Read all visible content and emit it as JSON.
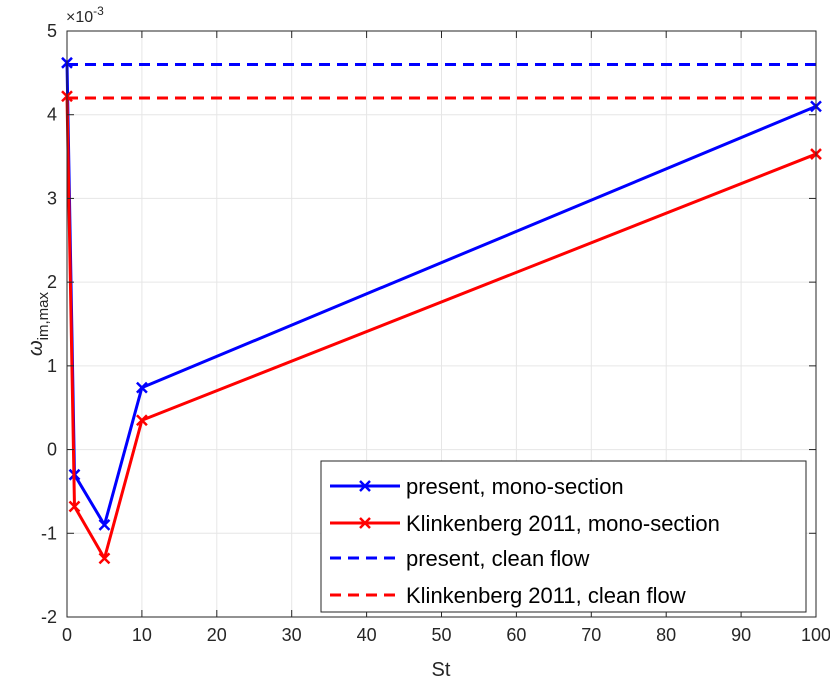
{
  "chart_data": {
    "type": "line",
    "xlabel": "St",
    "ylabel_main": "ω",
    "ylabel_sub": "im,max",
    "y_exponent_base": "×10",
    "y_exponent_power": "-3",
    "xlim": [
      0,
      100
    ],
    "ylim": [
      -2,
      5
    ],
    "xticks": [
      0,
      10,
      20,
      30,
      40,
      50,
      60,
      70,
      80,
      90,
      100
    ],
    "yticks": [
      -2,
      -1,
      0,
      1,
      2,
      3,
      4,
      5
    ],
    "grid": true,
    "legend_placement": "bottom-right",
    "series": [
      {
        "name": "present, mono-section",
        "style": "solid",
        "marker": "x",
        "color": "#0000ff",
        "x": [
          0,
          1,
          5,
          10,
          100
        ],
        "y": [
          4.62,
          -0.3,
          -0.9,
          0.74,
          4.1
        ]
      },
      {
        "name": "Klinkenberg 2011, mono-section",
        "style": "solid",
        "marker": "x",
        "color": "#ff0000",
        "x": [
          0,
          1,
          5,
          10,
          100
        ],
        "y": [
          4.22,
          -0.68,
          -1.3,
          0.35,
          3.53
        ]
      },
      {
        "name": "present, clean flow",
        "style": "dashed",
        "marker": "",
        "color": "#0000ff",
        "x": [
          0,
          100
        ],
        "y": [
          4.6,
          4.6
        ]
      },
      {
        "name": "Klinkenberg 2011, clean flow",
        "style": "dashed",
        "marker": "",
        "color": "#ff0000",
        "x": [
          0,
          100
        ],
        "y": [
          4.2,
          4.2
        ]
      }
    ]
  }
}
